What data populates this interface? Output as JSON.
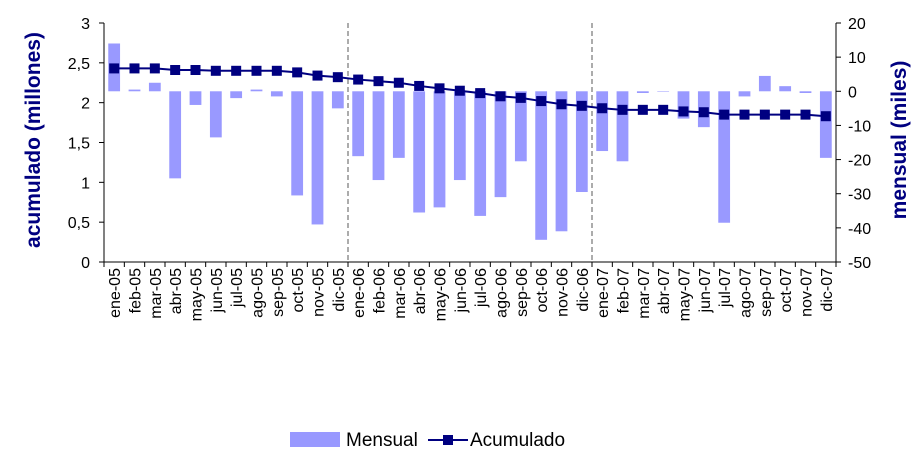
{
  "chart_data": {
    "type": "bar+line",
    "categories": [
      "ene-05",
      "feb-05",
      "mar-05",
      "abr-05",
      "may-05",
      "jun-05",
      "jul-05",
      "ago-05",
      "sep-05",
      "oct-05",
      "nov-05",
      "dic-05",
      "ene-06",
      "feb-06",
      "mar-06",
      "abr-06",
      "may-06",
      "jun-06",
      "jul-06",
      "ago-06",
      "sep-06",
      "oct-06",
      "nov-06",
      "dic-06",
      "ene-07",
      "feb-07",
      "mar-07",
      "abr-07",
      "may-07",
      "jun-07",
      "jul-07",
      "ago-07",
      "sep-07",
      "oct-07",
      "nov-07",
      "dic-07"
    ],
    "series": [
      {
        "name": "Mensual",
        "type": "bar",
        "axis": "right",
        "color": "#9999ff",
        "values": [
          14,
          0.5,
          2.5,
          -25.5,
          -4,
          -13.5,
          -2,
          0.5,
          -1.5,
          -30.5,
          -39,
          -5,
          -19,
          -26,
          -19.5,
          -35.5,
          -34,
          -26,
          -36.5,
          -31,
          -20.5,
          -43.5,
          -41,
          -29.5,
          -17.5,
          -20.5,
          -0.5,
          0,
          -8,
          -10.5,
          -38.5,
          -1.5,
          4.5,
          1.5,
          -0.5,
          -19.5
        ]
      },
      {
        "name": "Acumulado",
        "type": "line",
        "axis": "left",
        "color": "#000080",
        "values": [
          2.43,
          2.43,
          2.43,
          2.41,
          2.41,
          2.4,
          2.4,
          2.4,
          2.4,
          2.38,
          2.34,
          2.32,
          2.29,
          2.27,
          2.25,
          2.21,
          2.18,
          2.15,
          2.12,
          2.08,
          2.06,
          2.02,
          1.98,
          1.96,
          1.93,
          1.91,
          1.91,
          1.91,
          1.89,
          1.88,
          1.85,
          1.85,
          1.85,
          1.85,
          1.85,
          1.83
        ]
      }
    ],
    "ylabel_left": "acumulado (millones)",
    "ylabel_right": "mensual (miles)",
    "ylim_left": [
      0,
      3
    ],
    "ylim_right": [
      -50,
      20
    ],
    "yticks_left": [
      "0",
      "0,5",
      "1",
      "1,5",
      "2",
      "2,5",
      "3"
    ],
    "yticks_right": [
      "-50",
      "-40",
      "-30",
      "-20",
      "-10",
      "0",
      "10",
      "20"
    ],
    "vlines_between": [
      [
        "dic-05",
        "ene-06"
      ],
      [
        "dic-06",
        "ene-07"
      ]
    ],
    "grid": false,
    "legend": "bottom"
  }
}
